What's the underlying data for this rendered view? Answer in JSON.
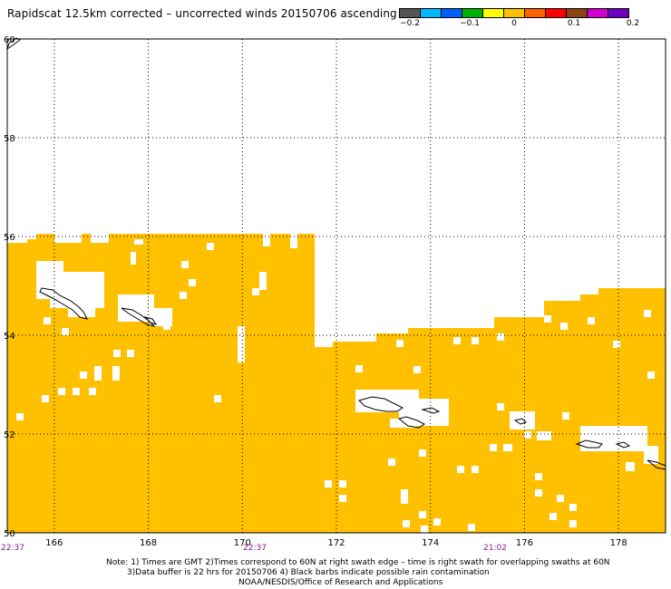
{
  "header": {
    "title": "Rapidscat 12.5km corrected – uncorrected winds 20150706 ascending"
  },
  "colorbar": {
    "colors": [
      "#555555",
      "#00b8ff",
      "#0060ff",
      "#00b000",
      "#ffff00",
      "#ffc000",
      "#ff6000",
      "#ff0000",
      "#8b4513",
      "#d000d0",
      "#7000c0"
    ],
    "labels": [
      "−0.2",
      "−0.1",
      "0",
      "0.1",
      "0.2"
    ]
  },
  "map": {
    "fill_color": "#ffc000",
    "coast_color": "#000000",
    "lon_range": [
      165,
      179
    ],
    "lat_range": [
      50,
      60
    ],
    "lat_ticks": [
      "50",
      "52",
      "54",
      "56",
      "58",
      "60"
    ],
    "lon_ticks": [
      "166",
      "168",
      "170",
      "172",
      "174",
      "176",
      "178"
    ],
    "time_labels": [
      "22:37",
      "22:37",
      "21:02"
    ]
  },
  "footer": {
    "line1": "Note: 1) Times are GMT 2)Times correspond to 60N at right swath edge – time is right swath for overlapping swaths at 60N",
    "line2": "3)Data buffer is 22 hrs for 20150706 4) Black barbs indicate possible rain contamination",
    "line3": "NOAA/NESDIS/Office of Research and Applications"
  }
}
